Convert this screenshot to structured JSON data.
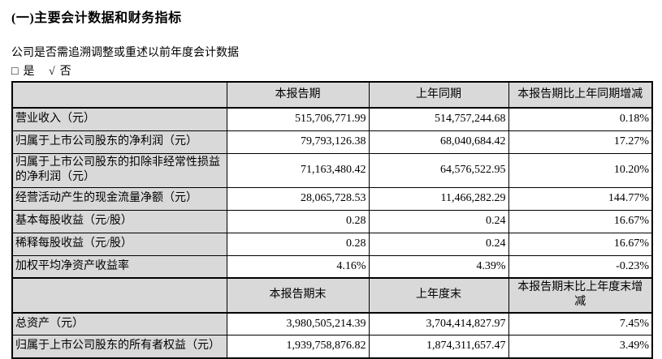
{
  "doc": {
    "title": "(一)主要会计数据和财务指标",
    "question": "公司是否需追溯调整或重述以前年度会计数据",
    "answer": {
      "unchecked_box": "□",
      "yes_label": "是",
      "checked_mark": "√",
      "no_label": "否"
    }
  },
  "colors": {
    "header_fill": "#d9d9d9",
    "border": "#000000",
    "text": "#000000"
  },
  "table": {
    "period_header": {
      "c1": "",
      "c2": "本报告期",
      "c3": "上年同期",
      "c4": "本报告期比上年同期增减"
    },
    "period_rows": [
      {
        "label": "营业收入（元）",
        "current": "515,706,771.99",
        "prior": "514,757,244.68",
        "change": "0.18%"
      },
      {
        "label": "归属于上市公司股东的净利润（元）",
        "current": "79,793,126.38",
        "prior": "68,040,684.42",
        "change": "17.27%"
      },
      {
        "label": "归属于上市公司股东的扣除非经常性损益的净利润（元）",
        "current": "71,163,480.42",
        "prior": "64,576,522.95",
        "change": "10.20%"
      },
      {
        "label": "经营活动产生的现金流量净额（元）",
        "current": "28,065,728.53",
        "prior": "11,466,282.29",
        "change": "144.77%"
      },
      {
        "label": "基本每股收益（元/股）",
        "current": "0.28",
        "prior": "0.24",
        "change": "16.67%"
      },
      {
        "label": "稀释每股收益（元/股）",
        "current": "0.28",
        "prior": "0.24",
        "change": "16.67%"
      },
      {
        "label": "加权平均净资产收益率",
        "current": "4.16%",
        "prior": "4.39%",
        "change": "-0.23%"
      }
    ],
    "end_header": {
      "c1": "",
      "c2": "本报告期末",
      "c3": "上年度末",
      "c4": "本报告期末比上年度末增减"
    },
    "end_rows": [
      {
        "label": "总资产（元）",
        "current": "3,980,505,214.39",
        "prior": "3,704,414,827.97",
        "change": "7.45%"
      },
      {
        "label": "归属于上市公司股东的所有者权益（元）",
        "current": "1,939,758,876.82",
        "prior": "1,874,311,657.47",
        "change": "3.49%"
      }
    ]
  }
}
